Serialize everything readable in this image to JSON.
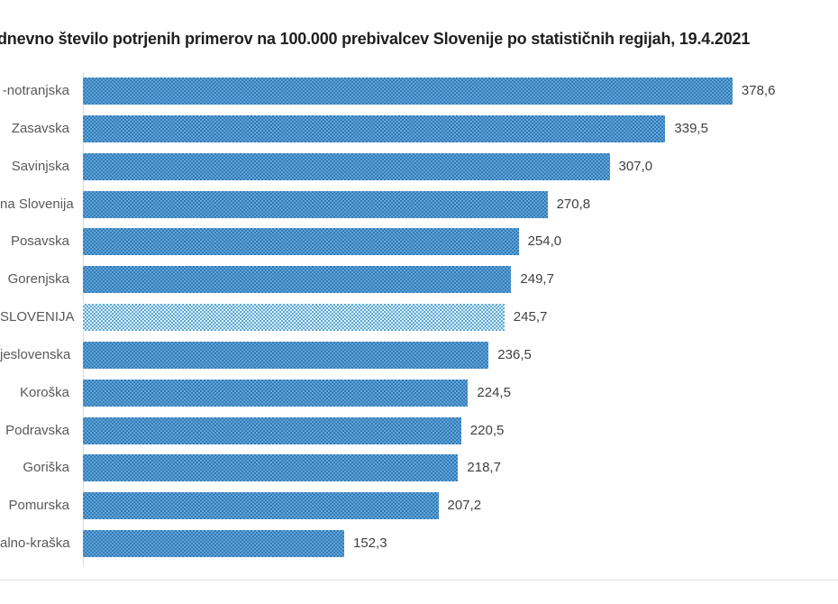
{
  "title": "dnevno število potrjenih primerov na 100.000 prebivalcev Slovenije po statističnih regijah, 19.4.2021",
  "chart_data": {
    "type": "bar",
    "orientation": "horizontal",
    "title": "dnevno število potrjenih primerov na 100.000 prebivalcev Slovenije po statističnih regijah, 19.4.2021",
    "categories": [
      "-notranjska",
      "Zasavska",
      "Savinjska",
      "na Slovenija",
      "Posavska",
      "Gorenjska",
      "SLOVENIJA",
      "jeslovenska",
      "Koroška",
      "Podravska",
      "Goriška",
      "Pomurska",
      "alno-kraška"
    ],
    "values": [
      378.6,
      339.5,
      307.0,
      270.8,
      254.0,
      249.7,
      245.7,
      236.5,
      224.5,
      220.5,
      218.7,
      207.2,
      152.3
    ],
    "value_labels": [
      "378,6",
      "339,5",
      "307,0",
      "270,8",
      "254,0",
      "249,7",
      "245,7",
      "236,5",
      "224,5",
      "220,5",
      "218,7",
      "207,2",
      "152,3"
    ],
    "highlight_index": 6,
    "xlim": [
      0,
      440
    ],
    "grid": false,
    "legend": false,
    "colors": {
      "bar_fill": "#5ba6da",
      "bar_pattern": "#3a7ab6",
      "highlight_fill": "#e3f2fa",
      "highlight_pattern": "#58a6d6",
      "axis_line": "#d9d9d9",
      "bottom_line": "#dfdfdf",
      "category_text": "#595959",
      "value_text": "#404040",
      "title_text": "#1f1f1f"
    }
  }
}
